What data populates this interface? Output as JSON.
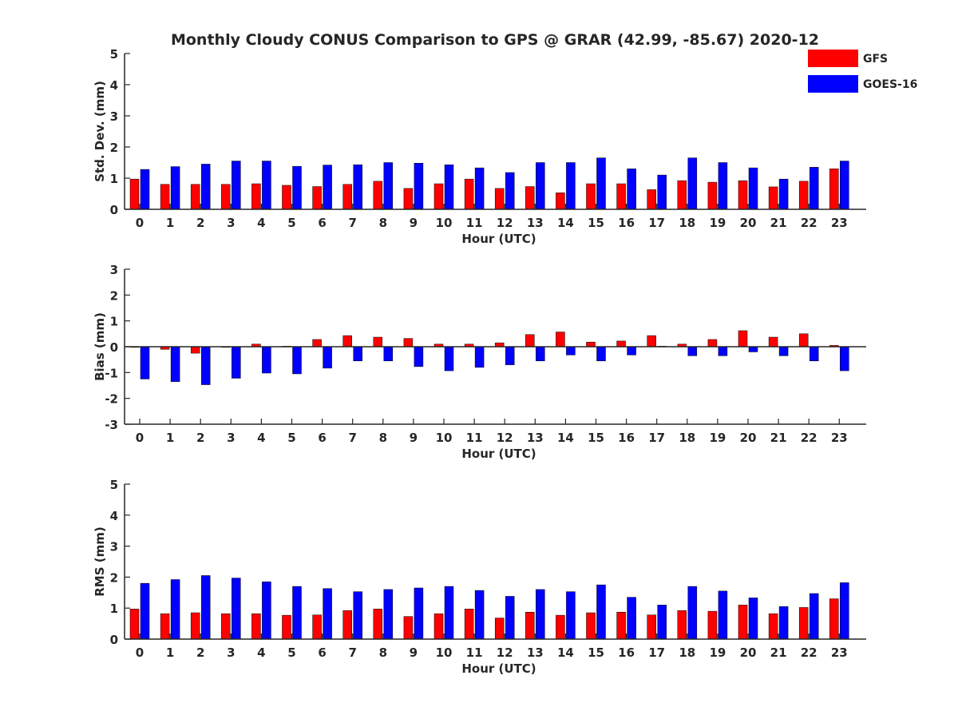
{
  "chart_data": {
    "title": "Monthly Cloudy CONUS Comparison to GPS @ GRAR (42.99, -85.67) 2020-12",
    "legend": {
      "placement": "top-right",
      "entries": [
        {
          "name": "GFS",
          "color": "#ff0000"
        },
        {
          "name": "GOES-16",
          "color": "#0000ff"
        }
      ]
    },
    "charts": [
      {
        "type": "bar",
        "ylabel": "Std. Dev. (mm)",
        "xlabel": "Hour (UTC)",
        "ylim": [
          0,
          5
        ],
        "yticks": [
          0,
          1,
          2,
          3,
          4,
          5
        ],
        "categories": [
          "0",
          "1",
          "2",
          "3",
          "4",
          "5",
          "6",
          "7",
          "8",
          "9",
          "10",
          "11",
          "12",
          "13",
          "14",
          "15",
          "16",
          "17",
          "18",
          "19",
          "20",
          "21",
          "22",
          "23"
        ],
        "series": [
          {
            "name": "GFS",
            "color": "#ff0000",
            "values": [
              0.97,
              0.8,
              0.8,
              0.8,
              0.82,
              0.77,
              0.73,
              0.8,
              0.9,
              0.67,
              0.82,
              0.97,
              0.67,
              0.73,
              0.53,
              0.82,
              0.82,
              0.63,
              0.92,
              0.87,
              0.92,
              0.72,
              0.9,
              1.3
            ]
          },
          {
            "name": "GOES-16",
            "color": "#0000ff",
            "values": [
              1.28,
              1.37,
              1.45,
              1.55,
              1.55,
              1.38,
              1.42,
              1.43,
              1.5,
              1.48,
              1.43,
              1.33,
              1.18,
              1.5,
              1.5,
              1.65,
              1.3,
              1.1,
              1.65,
              1.5,
              1.33,
              0.97,
              1.35,
              1.55
            ]
          }
        ]
      },
      {
        "type": "bar",
        "ylabel": "Bias (mm)",
        "xlabel": "Hour (UTC)",
        "ylim": [
          -3,
          3
        ],
        "yticks": [
          -3,
          -2,
          -1,
          0,
          1,
          2,
          3
        ],
        "zero_line": true,
        "categories": [
          "0",
          "1",
          "2",
          "3",
          "4",
          "5",
          "6",
          "7",
          "8",
          "9",
          "10",
          "11",
          "12",
          "13",
          "14",
          "15",
          "16",
          "17",
          "18",
          "19",
          "20",
          "21",
          "22",
          "23"
        ],
        "series": [
          {
            "name": "GFS",
            "color": "#ff0000",
            "values": [
              -0.02,
              -0.1,
              -0.25,
              -0.02,
              0.1,
              0.02,
              0.28,
              0.43,
              0.37,
              0.32,
              0.1,
              0.1,
              0.15,
              0.47,
              0.57,
              0.18,
              0.22,
              0.43,
              0.1,
              0.28,
              0.62,
              0.37,
              0.5,
              0.05
            ]
          },
          {
            "name": "GOES-16",
            "color": "#0000ff",
            "values": [
              -1.25,
              -1.35,
              -1.47,
              -1.22,
              -1.02,
              -1.05,
              -0.83,
              -0.55,
              -0.55,
              -0.77,
              -0.93,
              -0.8,
              -0.7,
              -0.55,
              -0.32,
              -0.55,
              -0.32,
              0.02,
              -0.35,
              -0.35,
              -0.2,
              -0.35,
              -0.55,
              -0.93
            ]
          }
        ]
      },
      {
        "type": "bar",
        "ylabel": "RMS (mm)",
        "xlabel": "Hour (UTC)",
        "ylim": [
          0,
          5
        ],
        "yticks": [
          0,
          1,
          2,
          3,
          4,
          5
        ],
        "categories": [
          "0",
          "1",
          "2",
          "3",
          "4",
          "5",
          "6",
          "7",
          "8",
          "9",
          "10",
          "11",
          "12",
          "13",
          "14",
          "15",
          "16",
          "17",
          "18",
          "19",
          "20",
          "21",
          "22",
          "23"
        ],
        "series": [
          {
            "name": "GFS",
            "color": "#ff0000",
            "values": [
              0.97,
              0.82,
              0.85,
              0.82,
              0.82,
              0.77,
              0.78,
              0.92,
              0.97,
              0.73,
              0.82,
              0.97,
              0.68,
              0.87,
              0.77,
              0.85,
              0.87,
              0.78,
              0.92,
              0.9,
              1.1,
              0.82,
              1.02,
              1.3
            ]
          },
          {
            "name": "GOES-16",
            "color": "#0000ff",
            "values": [
              1.8,
              1.92,
              2.05,
              1.97,
              1.85,
              1.7,
              1.63,
              1.53,
              1.6,
              1.65,
              1.7,
              1.57,
              1.38,
              1.6,
              1.53,
              1.75,
              1.35,
              1.1,
              1.7,
              1.55,
              1.33,
              1.05,
              1.47,
              1.82
            ]
          }
        ]
      }
    ]
  }
}
